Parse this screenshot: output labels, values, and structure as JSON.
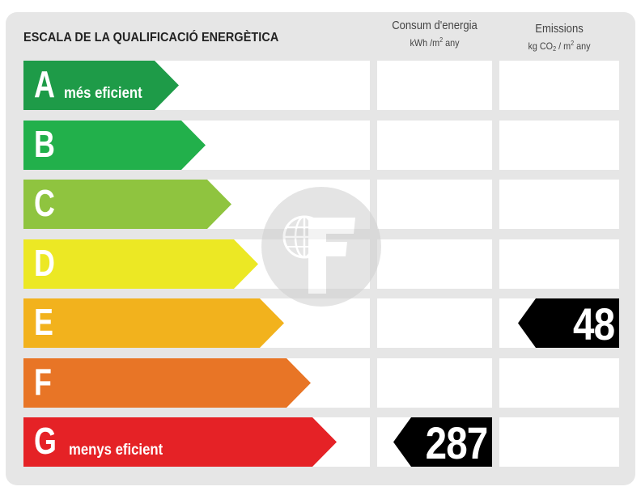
{
  "header": {
    "title": "ESCALA DE LA QUALIFICACIÓ ENERGÈTICA",
    "energy_col": {
      "line1": "Consum d'energia",
      "line2_pre": "kWh /m",
      "line2_sup": "2",
      "line2_post": " any"
    },
    "emissions_col": {
      "line1": "Emissions",
      "line2_pre": "kg CO",
      "line2_sub": "2",
      "line2_mid": " / m",
      "line2_sup": "2",
      "line2_post": " any"
    }
  },
  "scale": [
    {
      "letter": "A",
      "label": "més eficient",
      "color": "#1e9b48"
    },
    {
      "letter": "B",
      "label": "",
      "color": "#22b04b"
    },
    {
      "letter": "C",
      "label": "",
      "color": "#8fc43f"
    },
    {
      "letter": "D",
      "label": "",
      "color": "#ece824"
    },
    {
      "letter": "E",
      "label": "",
      "color": "#f2b21d"
    },
    {
      "letter": "F",
      "label": "",
      "color": "#e87526"
    },
    {
      "letter": "G",
      "label": "menys eficient",
      "color": "#e52226"
    }
  ],
  "ratings": {
    "energy": {
      "value": "287",
      "class": "G"
    },
    "emissions": {
      "value": "48",
      "class": "E"
    }
  },
  "watermark": {
    "icon": "globe-f-logo-icon"
  }
}
